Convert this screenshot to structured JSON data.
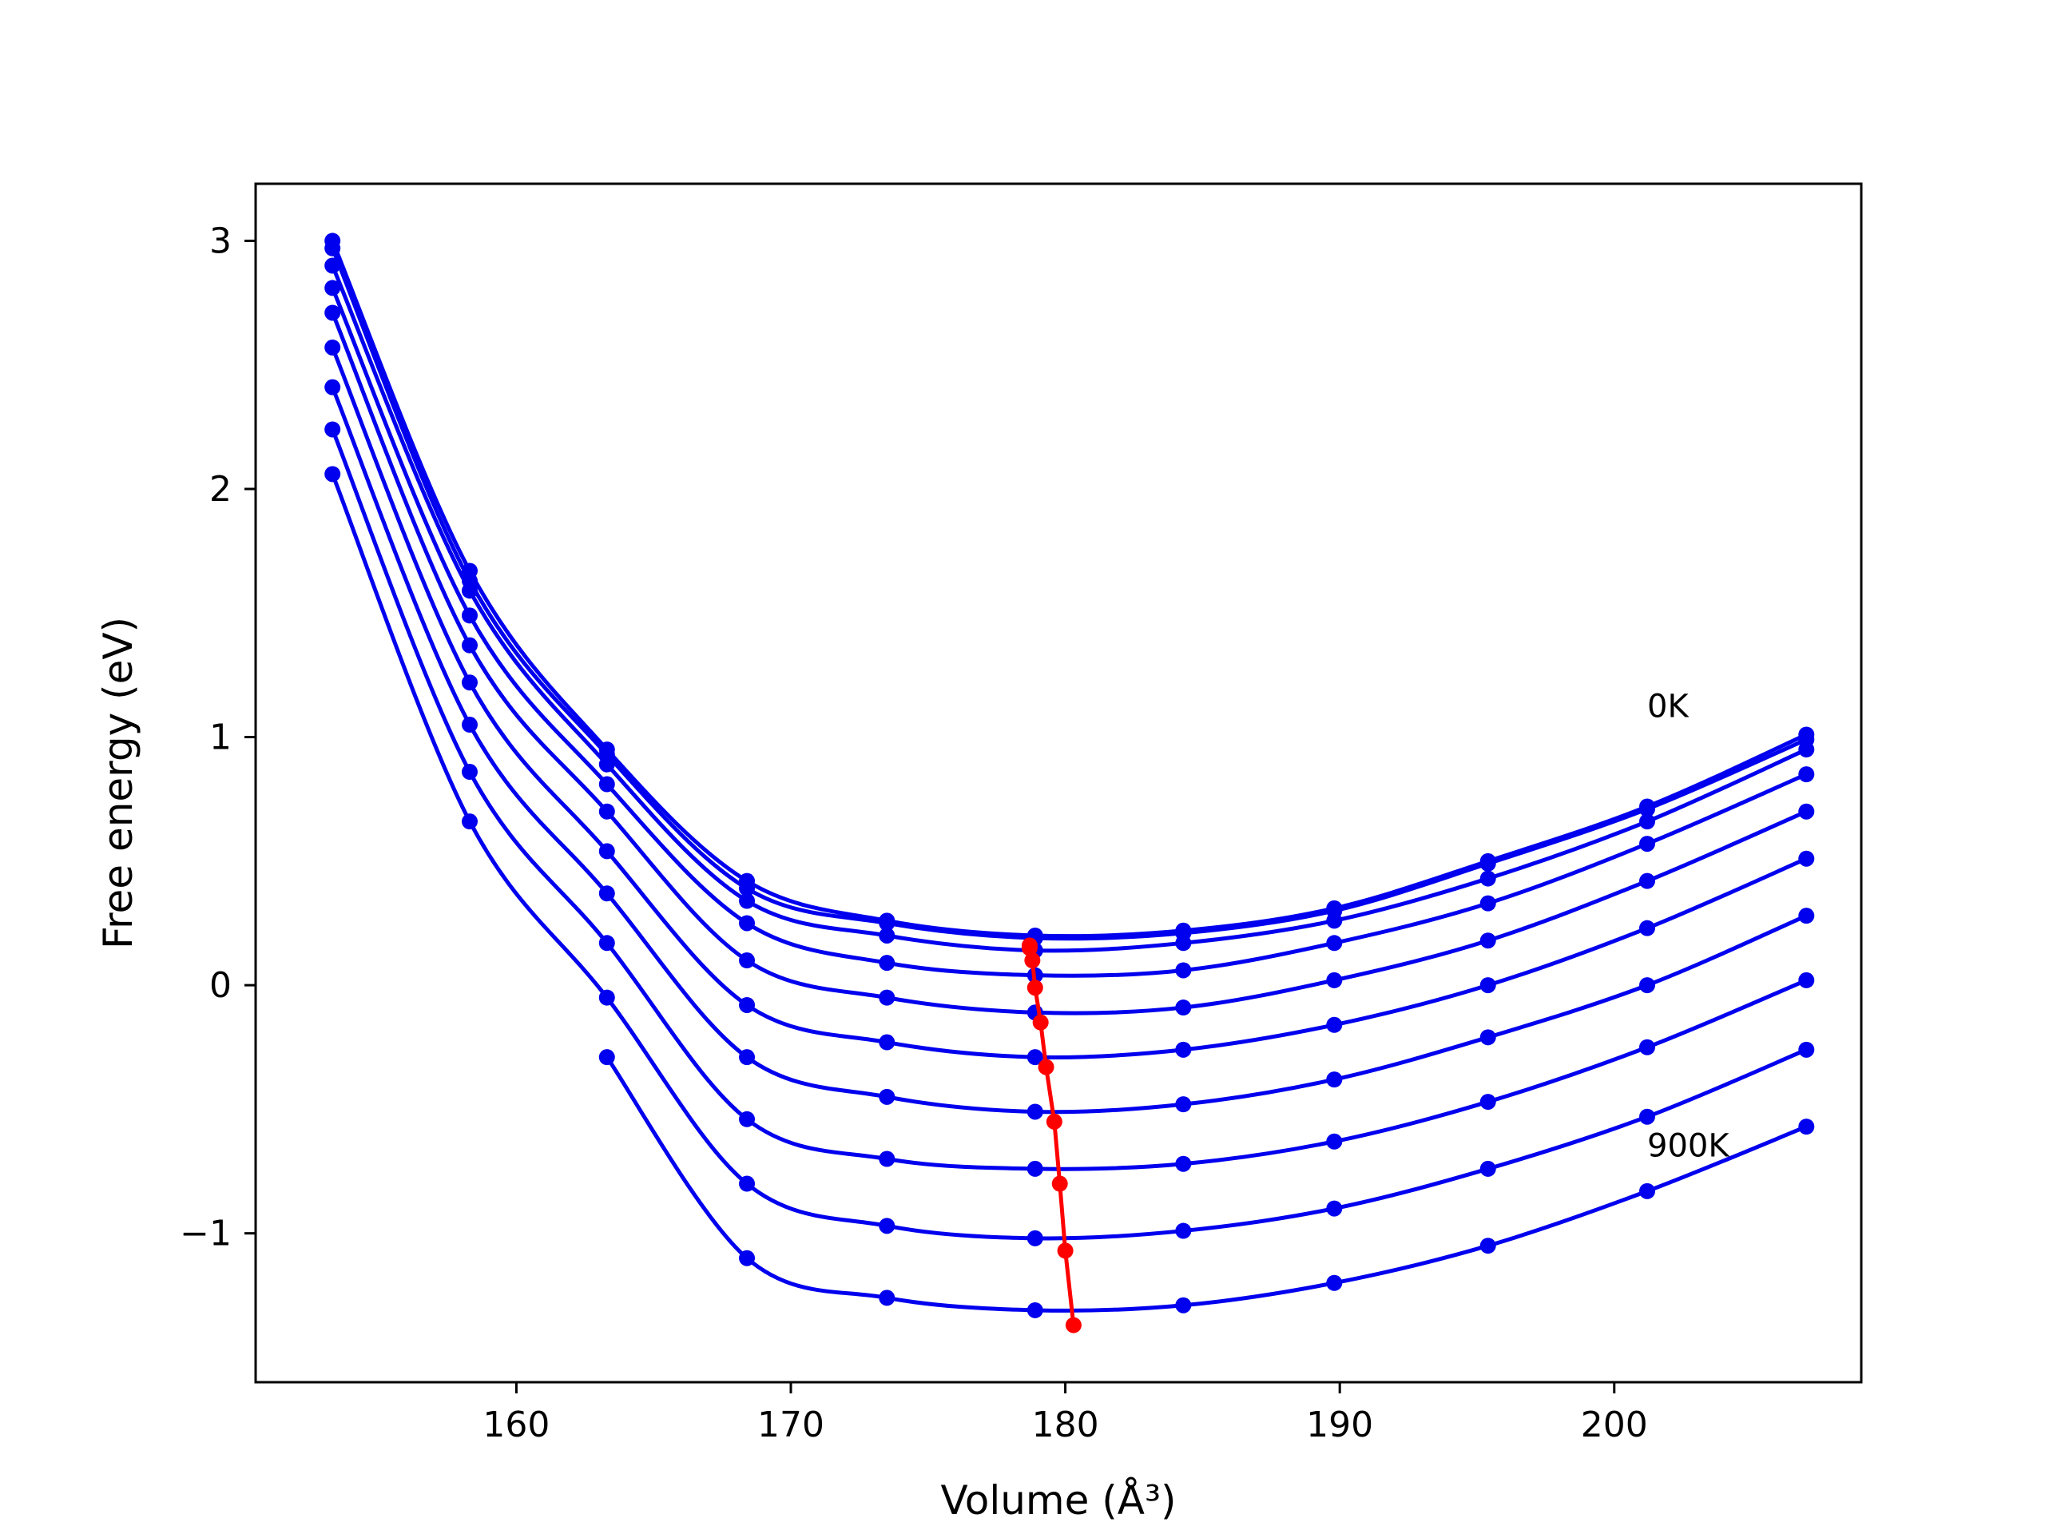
{
  "chart_data": {
    "type": "line",
    "title": "",
    "xlabel": "Volume (Å³)",
    "ylabel": "Free energy (eV)",
    "xlim": [
      150.5,
      209.0
    ],
    "ylim": [
      -1.6,
      3.23
    ],
    "xticks": [
      {
        "value": 160,
        "label": "160"
      },
      {
        "value": 170,
        "label": "170"
      },
      {
        "value": 180,
        "label": "180"
      },
      {
        "value": 190,
        "label": "190"
      },
      {
        "value": 200,
        "label": "200"
      }
    ],
    "yticks": [
      {
        "value": -1,
        "label": "−1"
      },
      {
        "value": 0,
        "label": "0"
      },
      {
        "value": 1,
        "label": "1"
      },
      {
        "value": 2,
        "label": "2"
      },
      {
        "value": 3,
        "label": "3"
      }
    ],
    "grid": false,
    "legend": "none",
    "annotations": [
      {
        "text": "0K",
        "x": 201.2,
        "y": 1.08
      },
      {
        "text": "900K",
        "x": 201.2,
        "y": -0.69
      }
    ],
    "curve_color": "#0000ee",
    "point_color": "#0000ee",
    "minimum_color": "#ff0000",
    "x": [
      153.3,
      158.3,
      163.3,
      168.4,
      173.5,
      178.9,
      184.3,
      189.8,
      195.4,
      201.2,
      207.0
    ],
    "series": [
      {
        "values": [
          3.0,
          1.67,
          0.95,
          0.42,
          0.26,
          0.2,
          0.22,
          0.31,
          0.5,
          0.72,
          1.01
        ]
      },
      {
        "values": [
          2.97,
          1.63,
          0.93,
          0.39,
          0.25,
          0.19,
          0.21,
          0.3,
          0.49,
          0.71,
          0.99
        ]
      },
      {
        "values": [
          2.9,
          1.59,
          0.89,
          0.34,
          0.2,
          0.14,
          0.17,
          0.26,
          0.43,
          0.66,
          0.95
        ]
      },
      {
        "values": [
          2.81,
          1.49,
          0.81,
          0.25,
          0.09,
          0.04,
          0.06,
          0.17,
          0.33,
          0.57,
          0.85
        ]
      },
      {
        "values": [
          2.71,
          1.37,
          0.7,
          0.1,
          -0.05,
          -0.11,
          -0.09,
          0.02,
          0.18,
          0.42,
          0.7
        ]
      },
      {
        "values": [
          2.57,
          1.22,
          0.54,
          -0.08,
          -0.23,
          -0.29,
          -0.26,
          -0.16,
          0.0,
          0.23,
          0.51
        ]
      },
      {
        "values": [
          2.41,
          1.05,
          0.37,
          -0.29,
          -0.45,
          -0.51,
          -0.48,
          -0.38,
          -0.21,
          0.0,
          0.28
        ]
      },
      {
        "values": [
          2.24,
          0.86,
          0.17,
          -0.54,
          -0.7,
          -0.74,
          -0.72,
          -0.63,
          -0.47,
          -0.25,
          0.02
        ]
      },
      {
        "values": [
          2.06,
          0.66,
          -0.05,
          -0.8,
          -0.97,
          -1.02,
          -0.99,
          -0.9,
          -0.74,
          -0.53,
          -0.26
        ]
      },
      {
        "values": [
          null,
          null,
          -0.29,
          -1.1,
          -1.26,
          -1.31,
          -1.29,
          -1.2,
          -1.05,
          -0.83,
          -0.57
        ]
      }
    ],
    "minima": {
      "x": [
        178.7,
        178.7,
        178.8,
        178.9,
        179.1,
        179.3,
        179.6,
        179.8,
        180.0,
        180.3
      ],
      "y": [
        0.16,
        0.15,
        0.1,
        -0.01,
        -0.15,
        -0.33,
        -0.55,
        -0.8,
        -1.07,
        -1.37
      ]
    }
  }
}
